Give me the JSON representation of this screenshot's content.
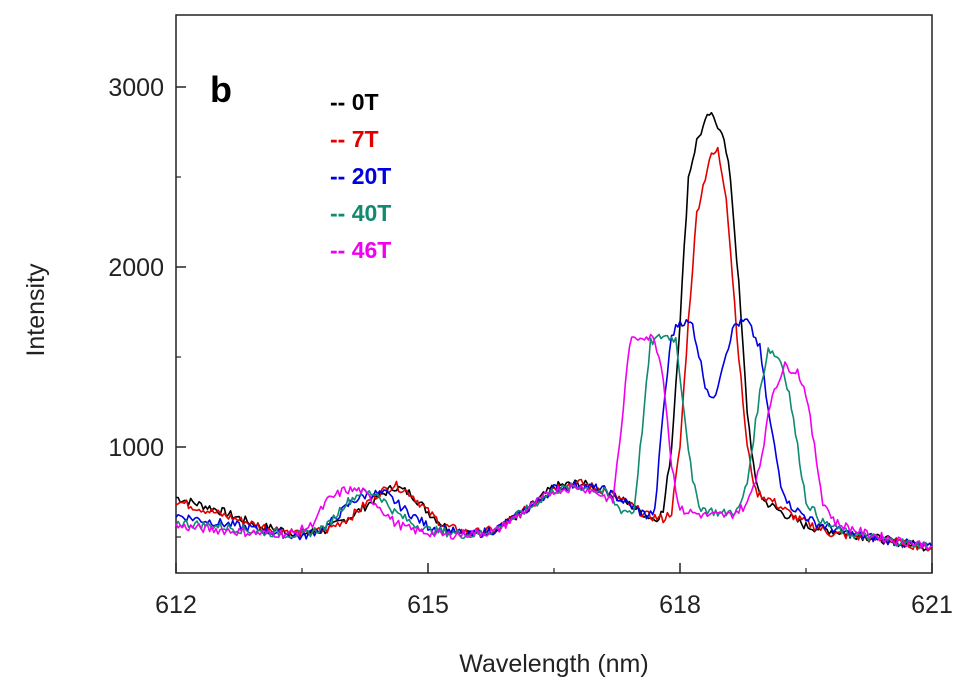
{
  "chart_data": {
    "type": "line",
    "panel_label": "b",
    "xlabel": "Wavelength (nm)",
    "ylabel": "Intensity",
    "xlim": [
      612,
      621
    ],
    "ylim": [
      300,
      3400
    ],
    "xticks": [
      612,
      615,
      618,
      621
    ],
    "yticks": [
      1000,
      2000,
      3000
    ],
    "grid": false,
    "legend_position": "top-left",
    "series": [
      {
        "name": "-- 0T",
        "color": "#000000",
        "points": [
          [
            612.0,
            720
          ],
          [
            612.5,
            650
          ],
          [
            613.0,
            560
          ],
          [
            613.5,
            520
          ],
          [
            613.8,
            540
          ],
          [
            614.1,
            620
          ],
          [
            614.4,
            720
          ],
          [
            614.6,
            780
          ],
          [
            614.8,
            740
          ],
          [
            615.0,
            640
          ],
          [
            615.2,
            560
          ],
          [
            615.5,
            520
          ],
          [
            615.8,
            540
          ],
          [
            616.2,
            660
          ],
          [
            616.5,
            780
          ],
          [
            616.8,
            800
          ],
          [
            617.1,
            760
          ],
          [
            617.4,
            680
          ],
          [
            617.6,
            620
          ],
          [
            617.7,
            600
          ],
          [
            617.8,
            640
          ],
          [
            617.9,
            1000
          ],
          [
            618.0,
            1700
          ],
          [
            618.1,
            2500
          ],
          [
            618.2,
            2700
          ],
          [
            618.35,
            2850
          ],
          [
            618.5,
            2760
          ],
          [
            618.6,
            2500
          ],
          [
            618.7,
            1900
          ],
          [
            618.8,
            1200
          ],
          [
            618.9,
            800
          ],
          [
            619.0,
            700
          ],
          [
            619.2,
            640
          ],
          [
            619.5,
            560
          ],
          [
            620.0,
            520
          ],
          [
            620.5,
            480
          ],
          [
            621.0,
            440
          ]
        ]
      },
      {
        "name": "-- 7T",
        "color": "#e00000",
        "points": [
          [
            612.0,
            700
          ],
          [
            612.5,
            630
          ],
          [
            613.0,
            560
          ],
          [
            613.5,
            520
          ],
          [
            613.8,
            540
          ],
          [
            614.1,
            620
          ],
          [
            614.4,
            740
          ],
          [
            614.6,
            790
          ],
          [
            614.8,
            740
          ],
          [
            615.0,
            640
          ],
          [
            615.2,
            560
          ],
          [
            615.5,
            520
          ],
          [
            615.8,
            540
          ],
          [
            616.2,
            660
          ],
          [
            616.5,
            780
          ],
          [
            616.8,
            800
          ],
          [
            617.1,
            760
          ],
          [
            617.4,
            680
          ],
          [
            617.6,
            620
          ],
          [
            617.8,
            600
          ],
          [
            617.9,
            640
          ],
          [
            618.0,
            1000
          ],
          [
            618.1,
            1700
          ],
          [
            618.2,
            2300
          ],
          [
            618.35,
            2600
          ],
          [
            618.45,
            2650
          ],
          [
            618.55,
            2400
          ],
          [
            618.7,
            1500
          ],
          [
            618.8,
            1000
          ],
          [
            618.9,
            750
          ],
          [
            619.1,
            700
          ],
          [
            619.4,
            600
          ],
          [
            619.8,
            520
          ],
          [
            620.3,
            490
          ],
          [
            621.0,
            440
          ]
        ]
      },
      {
        "name": "-- 20T",
        "color": "#0000e0",
        "points": [
          [
            612.0,
            620
          ],
          [
            612.5,
            580
          ],
          [
            613.0,
            540
          ],
          [
            613.5,
            500
          ],
          [
            613.8,
            560
          ],
          [
            614.1,
            700
          ],
          [
            614.3,
            740
          ],
          [
            614.5,
            740
          ],
          [
            614.7,
            660
          ],
          [
            615.0,
            560
          ],
          [
            615.5,
            510
          ],
          [
            615.8,
            540
          ],
          [
            616.2,
            660
          ],
          [
            616.5,
            770
          ],
          [
            616.8,
            790
          ],
          [
            617.1,
            760
          ],
          [
            617.4,
            680
          ],
          [
            617.6,
            620
          ],
          [
            617.7,
            640
          ],
          [
            617.8,
            1200
          ],
          [
            617.9,
            1620
          ],
          [
            618.0,
            1700
          ],
          [
            618.15,
            1680
          ],
          [
            618.3,
            1350
          ],
          [
            618.4,
            1250
          ],
          [
            618.5,
            1450
          ],
          [
            618.65,
            1680
          ],
          [
            618.8,
            1700
          ],
          [
            618.95,
            1550
          ],
          [
            619.05,
            1200
          ],
          [
            619.2,
            800
          ],
          [
            619.3,
            680
          ],
          [
            619.6,
            580
          ],
          [
            620.0,
            520
          ],
          [
            620.5,
            480
          ],
          [
            621.0,
            440
          ]
        ]
      },
      {
        "name": "-- 40T",
        "color": "#108a70",
        "points": [
          [
            612.0,
            580
          ],
          [
            612.5,
            560
          ],
          [
            613.0,
            530
          ],
          [
            613.5,
            510
          ],
          [
            613.8,
            560
          ],
          [
            614.0,
            680
          ],
          [
            614.2,
            750
          ],
          [
            614.4,
            740
          ],
          [
            614.6,
            640
          ],
          [
            614.8,
            580
          ],
          [
            615.0,
            540
          ],
          [
            615.5,
            510
          ],
          [
            615.8,
            540
          ],
          [
            616.2,
            660
          ],
          [
            616.5,
            760
          ],
          [
            616.8,
            780
          ],
          [
            617.1,
            750
          ],
          [
            617.3,
            650
          ],
          [
            617.45,
            640
          ],
          [
            617.55,
            1100
          ],
          [
            617.65,
            1580
          ],
          [
            617.8,
            1620
          ],
          [
            617.95,
            1600
          ],
          [
            618.05,
            1200
          ],
          [
            618.15,
            800
          ],
          [
            618.25,
            660
          ],
          [
            618.5,
            630
          ],
          [
            618.7,
            650
          ],
          [
            618.8,
            800
          ],
          [
            618.95,
            1300
          ],
          [
            619.05,
            1550
          ],
          [
            619.2,
            1480
          ],
          [
            619.3,
            1300
          ],
          [
            619.4,
            1000
          ],
          [
            619.5,
            700
          ],
          [
            619.7,
            580
          ],
          [
            620.0,
            520
          ],
          [
            620.5,
            480
          ],
          [
            621.0,
            450
          ]
        ]
      },
      {
        "name": "-- 46T",
        "color": "#f000f0",
        "points": [
          [
            612.0,
            560
          ],
          [
            612.5,
            540
          ],
          [
            613.0,
            520
          ],
          [
            613.4,
            520
          ],
          [
            613.6,
            560
          ],
          [
            613.8,
            700
          ],
          [
            614.0,
            760
          ],
          [
            614.2,
            760
          ],
          [
            614.4,
            680
          ],
          [
            614.6,
            580
          ],
          [
            614.8,
            540
          ],
          [
            615.2,
            510
          ],
          [
            615.8,
            530
          ],
          [
            616.2,
            660
          ],
          [
            616.5,
            760
          ],
          [
            616.8,
            780
          ],
          [
            617.0,
            750
          ],
          [
            617.2,
            700
          ],
          [
            617.3,
            1100
          ],
          [
            617.4,
            1580
          ],
          [
            617.55,
            1620
          ],
          [
            617.7,
            1600
          ],
          [
            617.8,
            1400
          ],
          [
            617.9,
            900
          ],
          [
            618.0,
            650
          ],
          [
            618.3,
            620
          ],
          [
            618.6,
            620
          ],
          [
            618.8,
            680
          ],
          [
            618.95,
            900
          ],
          [
            619.1,
            1300
          ],
          [
            619.25,
            1450
          ],
          [
            619.4,
            1420
          ],
          [
            619.5,
            1300
          ],
          [
            619.6,
            1000
          ],
          [
            619.7,
            700
          ],
          [
            619.85,
            580
          ],
          [
            620.2,
            520
          ],
          [
            620.6,
            480
          ],
          [
            621.0,
            450
          ]
        ]
      }
    ]
  }
}
